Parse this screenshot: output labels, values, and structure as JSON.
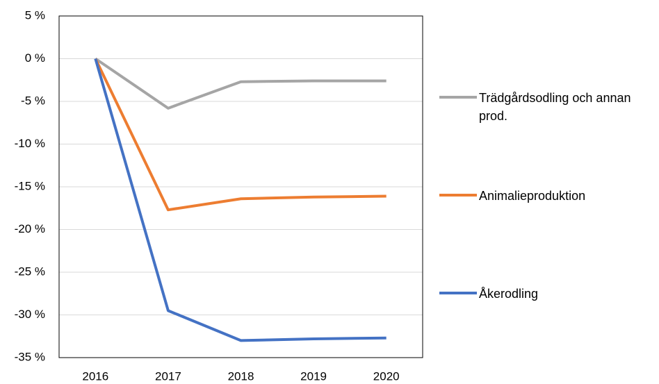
{
  "chart_data": {
    "type": "line",
    "categories": [
      "2016",
      "2017",
      "2018",
      "2019",
      "2020"
    ],
    "series": [
      {
        "name": "Trädgårdsodling och annan prod.",
        "color": "#a5a5a5",
        "values": [
          0,
          -5.8,
          -2.7,
          -2.6,
          -2.6
        ]
      },
      {
        "name": "Animalieproduktion",
        "color": "#ed7d31",
        "values": [
          0,
          -17.7,
          -16.4,
          -16.2,
          -16.1
        ]
      },
      {
        "name": "Åkerodling",
        "color": "#4472c4",
        "values": [
          0,
          -29.5,
          -33.0,
          -32.8,
          -32.7
        ]
      }
    ],
    "ylim": [
      -35,
      5
    ],
    "yticks": [
      {
        "value": 5,
        "label": "5 %"
      },
      {
        "value": 0,
        "label": "0 %"
      },
      {
        "value": -5,
        "label": "-5 %"
      },
      {
        "value": -10,
        "label": "-10 %"
      },
      {
        "value": -15,
        "label": "-15 %"
      },
      {
        "value": -20,
        "label": "-20 %"
      },
      {
        "value": -25,
        "label": "-25 %"
      },
      {
        "value": -30,
        "label": "-30 %"
      },
      {
        "value": -35,
        "label": "-35 %"
      }
    ],
    "grid": true,
    "legend": "right"
  }
}
